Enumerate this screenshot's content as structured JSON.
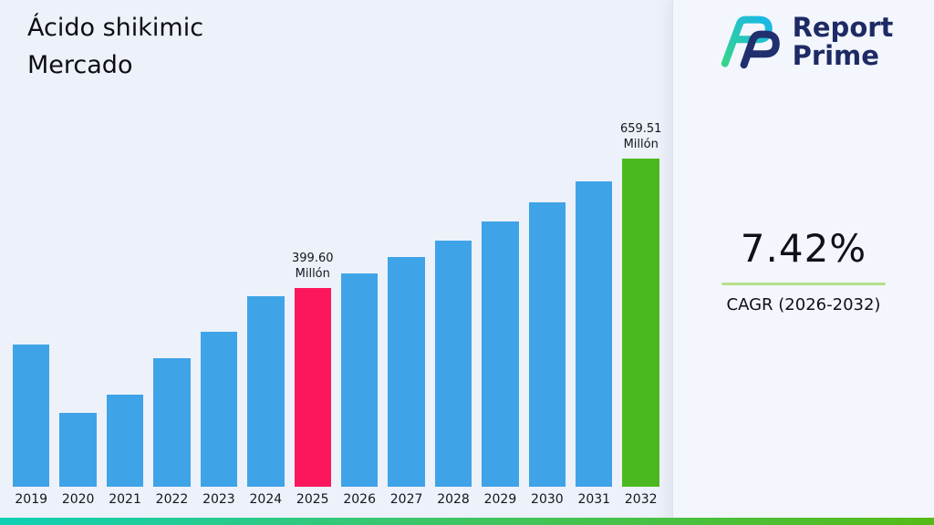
{
  "page": {
    "title": "Ácido shikimic\nMercado"
  },
  "logo": {
    "line1": "Report",
    "line2": "Prime"
  },
  "stats": {
    "cagr_value": "7.42%",
    "cagr_label": "CAGR (2026-2032)"
  },
  "brand_colors": {
    "navy": "#1d2a64",
    "teal": "#35d48c",
    "underline_green": "#b5e08a",
    "footer_gradient_start": "#0fd0b5",
    "footer_gradient_end": "#55bb17"
  },
  "chart_data": {
    "type": "bar",
    "title": "Ácido shikimic Mercado",
    "xlabel": "",
    "ylabel": "",
    "unit": "Millón",
    "categories": [
      "2019",
      "2020",
      "2021",
      "2022",
      "2023",
      "2024",
      "2025",
      "2026",
      "2027",
      "2028",
      "2029",
      "2030",
      "2031",
      "2032"
    ],
    "values": [
      285,
      148,
      185,
      258,
      312,
      382,
      399.6,
      429.41,
      461.28,
      495.51,
      532.28,
      571.78,
      614.21,
      659.51
    ],
    "annotations": [
      {
        "category": "2025",
        "label": "399.60\nMillón"
      },
      {
        "category": "2032",
        "label": "659.51\nMillón"
      }
    ],
    "bar_colors": {
      "default": "#3fa3e8",
      "2025": "#fc175d",
      "2032": "#4cb81f"
    },
    "ylim": [
      0,
      660
    ],
    "grid": false,
    "legend": false
  }
}
